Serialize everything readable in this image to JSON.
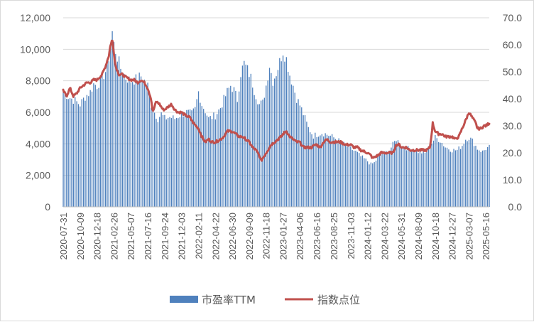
{
  "chart_data": {
    "type": "bar+line",
    "title": "",
    "xlabel": "",
    "ylabel": "",
    "y_left": {
      "min": 0,
      "max": 12000,
      "step": 2000,
      "tick_labels": [
        "0",
        "2,000",
        "4,000",
        "6,000",
        "8,000",
        "10,000",
        "12,000"
      ]
    },
    "y_right": {
      "min": 0,
      "max": 70,
      "step": 10,
      "tick_labels": [
        "0.0",
        "10.0",
        "20.0",
        "30.0",
        "40.0",
        "50.0",
        "60.0",
        "70.0"
      ]
    },
    "x_tick_labels": [
      "2020-07-31",
      "2020-10-09",
      "2020-12-18",
      "2021-02-26",
      "2021-05-07",
      "2021-07-16",
      "2021-09-24",
      "2021-12-03",
      "2022-02-11",
      "2022-04-22",
      "2022-06-30",
      "2022-09-09",
      "2022-11-18",
      "2023-01-27",
      "2023-04-06",
      "2023-06-16",
      "2023-08-25",
      "2023-11-03",
      "2024-01-12",
      "2024-03-22",
      "2024-05-31",
      "2024-08-09",
      "2024-10-18",
      "2024-12-27",
      "2025-03-07",
      "2025-05-16"
    ],
    "grid": true,
    "legend_position": "bottom",
    "series": [
      {
        "name": "市盈率TTM",
        "axis": "left",
        "type": "bar",
        "color": "#4f81bd",
        "keypoints": [
          [
            "2020-07-31",
            7300
          ],
          [
            "2020-08-21",
            7000
          ],
          [
            "2020-09-11",
            6800
          ],
          [
            "2020-10-09",
            6500
          ],
          [
            "2020-10-30",
            7000
          ],
          [
            "2020-11-20",
            7300
          ],
          [
            "2020-12-04",
            7800
          ],
          [
            "2020-12-18",
            7700
          ],
          [
            "2021-01-08",
            8200
          ],
          [
            "2021-01-22",
            8600
          ],
          [
            "2021-02-05",
            9500
          ],
          [
            "2021-02-19",
            11100
          ],
          [
            "2021-02-26",
            10300
          ],
          [
            "2021-03-12",
            9500
          ],
          [
            "2021-03-26",
            8800
          ],
          [
            "2021-04-16",
            8200
          ],
          [
            "2021-05-07",
            8000
          ],
          [
            "2021-05-28",
            8100
          ],
          [
            "2021-06-18",
            8300
          ],
          [
            "2021-07-02",
            8000
          ],
          [
            "2021-07-16",
            7700
          ],
          [
            "2021-07-30",
            6500
          ],
          [
            "2021-08-13",
            6000
          ],
          [
            "2021-08-27",
            5600
          ],
          [
            "2021-09-10",
            5900
          ],
          [
            "2021-09-24",
            5600
          ],
          [
            "2021-10-15",
            5700
          ],
          [
            "2021-11-05",
            5600
          ],
          [
            "2021-12-03",
            5900
          ],
          [
            "2021-12-24",
            6000
          ],
          [
            "2022-01-14",
            5900
          ],
          [
            "2022-01-28",
            6200
          ],
          [
            "2022-02-11",
            7300
          ],
          [
            "2022-02-25",
            6500
          ],
          [
            "2022-03-11",
            6100
          ],
          [
            "2022-03-25",
            5600
          ],
          [
            "2022-04-08",
            5700
          ],
          [
            "2022-04-22",
            5800
          ],
          [
            "2022-05-13",
            6300
          ],
          [
            "2022-05-27",
            6800
          ],
          [
            "2022-06-10",
            7300
          ],
          [
            "2022-06-24",
            7700
          ],
          [
            "2022-07-08",
            7400
          ],
          [
            "2022-07-22",
            6800
          ],
          [
            "2022-08-05",
            8500
          ],
          [
            "2022-08-19",
            9100
          ],
          [
            "2022-09-02",
            8700
          ],
          [
            "2022-09-16",
            8200
          ],
          [
            "2022-09-30",
            7400
          ],
          [
            "2022-10-21",
            6500
          ],
          [
            "2022-11-04",
            6600
          ],
          [
            "2022-11-18",
            7700
          ],
          [
            "2022-12-02",
            9000
          ],
          [
            "2022-12-16",
            8000
          ],
          [
            "2022-12-30",
            8500
          ],
          [
            "2023-01-13",
            9200
          ],
          [
            "2023-01-27",
            9900
          ],
          [
            "2023-02-10",
            9400
          ],
          [
            "2023-02-24",
            8400
          ],
          [
            "2023-03-10",
            7700
          ],
          [
            "2023-03-24",
            6900
          ],
          [
            "2023-04-06",
            6500
          ],
          [
            "2023-04-21",
            5900
          ],
          [
            "2023-05-12",
            5000
          ],
          [
            "2023-06-02",
            4500
          ],
          [
            "2023-06-16",
            4600
          ],
          [
            "2023-07-07",
            4700
          ],
          [
            "2023-07-28",
            4600
          ],
          [
            "2023-08-25",
            4400
          ],
          [
            "2023-09-15",
            4200
          ],
          [
            "2023-10-13",
            3900
          ],
          [
            "2023-11-03",
            3700
          ],
          [
            "2023-11-24",
            3500
          ],
          [
            "2023-12-15",
            3200
          ],
          [
            "2024-01-12",
            2900
          ],
          [
            "2024-01-26",
            2700
          ],
          [
            "2024-02-09",
            2800
          ],
          [
            "2024-03-01",
            3300
          ],
          [
            "2024-03-22",
            3400
          ],
          [
            "2024-04-12",
            3600
          ],
          [
            "2024-05-10",
            4300
          ],
          [
            "2024-05-31",
            3900
          ],
          [
            "2024-06-28",
            3700
          ],
          [
            "2024-07-26",
            3600
          ],
          [
            "2024-08-09",
            3500
          ],
          [
            "2024-09-06",
            3400
          ],
          [
            "2024-09-27",
            3900
          ],
          [
            "2024-10-18",
            4400
          ],
          [
            "2024-11-08",
            4200
          ],
          [
            "2024-11-29",
            3800
          ],
          [
            "2024-12-27",
            3600
          ],
          [
            "2025-01-17",
            3600
          ],
          [
            "2025-02-07",
            3900
          ],
          [
            "2025-02-21",
            4300
          ],
          [
            "2025-03-07",
            4400
          ],
          [
            "2025-03-21",
            4200
          ],
          [
            "2025-04-11",
            3700
          ],
          [
            "2025-05-02",
            3500
          ],
          [
            "2025-05-16",
            3700
          ],
          [
            "2025-05-30",
            3800
          ]
        ]
      },
      {
        "name": "指数点位",
        "axis": "right",
        "type": "line",
        "color": "#c0504d",
        "keypoints": [
          [
            "2020-07-31",
            43
          ],
          [
            "2020-08-14",
            41
          ],
          [
            "2020-08-28",
            44
          ],
          [
            "2020-09-11",
            41
          ],
          [
            "2020-09-25",
            42
          ],
          [
            "2020-10-09",
            44
          ],
          [
            "2020-10-23",
            45
          ],
          [
            "2020-11-06",
            46
          ],
          [
            "2020-11-20",
            46
          ],
          [
            "2020-12-04",
            47
          ],
          [
            "2020-12-18",
            47
          ],
          [
            "2021-01-08",
            49
          ],
          [
            "2021-01-22",
            52
          ],
          [
            "2021-02-05",
            56
          ],
          [
            "2021-02-12",
            60
          ],
          [
            "2021-02-19",
            62
          ],
          [
            "2021-02-26",
            57
          ],
          [
            "2021-03-05",
            52
          ],
          [
            "2021-03-19",
            49
          ],
          [
            "2021-04-02",
            49
          ],
          [
            "2021-04-16",
            48
          ],
          [
            "2021-05-07",
            47
          ],
          [
            "2021-05-21",
            47
          ],
          [
            "2021-06-04",
            46
          ],
          [
            "2021-06-18",
            47
          ],
          [
            "2021-07-02",
            46
          ],
          [
            "2021-07-16",
            44
          ],
          [
            "2021-07-30",
            40
          ],
          [
            "2021-08-06",
            35
          ],
          [
            "2021-08-20",
            39
          ],
          [
            "2021-09-03",
            38
          ],
          [
            "2021-09-17",
            36
          ],
          [
            "2021-09-24",
            36
          ],
          [
            "2021-10-08",
            37
          ],
          [
            "2021-10-22",
            38
          ],
          [
            "2021-11-05",
            36
          ],
          [
            "2021-11-19",
            35
          ],
          [
            "2021-12-03",
            35
          ],
          [
            "2021-12-17",
            34
          ],
          [
            "2022-01-07",
            33
          ],
          [
            "2022-01-21",
            31
          ],
          [
            "2022-02-11",
            29
          ],
          [
            "2022-02-25",
            26
          ],
          [
            "2022-03-11",
            24
          ],
          [
            "2022-03-25",
            25
          ],
          [
            "2022-04-08",
            24
          ],
          [
            "2022-04-22",
            24
          ],
          [
            "2022-05-13",
            25
          ],
          [
            "2022-05-27",
            26
          ],
          [
            "2022-06-10",
            28
          ],
          [
            "2022-06-30",
            28
          ],
          [
            "2022-07-15",
            27
          ],
          [
            "2022-07-29",
            26
          ],
          [
            "2022-08-12",
            26
          ],
          [
            "2022-08-26",
            25
          ],
          [
            "2022-09-09",
            24
          ],
          [
            "2022-09-23",
            22
          ],
          [
            "2022-10-07",
            21
          ],
          [
            "2022-10-21",
            19
          ],
          [
            "2022-10-28",
            17
          ],
          [
            "2022-11-11",
            19
          ],
          [
            "2022-11-25",
            21
          ],
          [
            "2022-12-09",
            23
          ],
          [
            "2022-12-23",
            24
          ],
          [
            "2023-01-06",
            25
          ],
          [
            "2023-01-20",
            26
          ],
          [
            "2023-01-27",
            27
          ],
          [
            "2023-02-10",
            28
          ],
          [
            "2023-02-24",
            26
          ],
          [
            "2023-03-10",
            25
          ],
          [
            "2023-03-24",
            24
          ],
          [
            "2023-04-06",
            24
          ],
          [
            "2023-04-21",
            22
          ],
          [
            "2023-05-12",
            22
          ],
          [
            "2023-05-26",
            22
          ],
          [
            "2023-06-09",
            23
          ],
          [
            "2023-06-16",
            23
          ],
          [
            "2023-06-30",
            22
          ],
          [
            "2023-07-14",
            24
          ],
          [
            "2023-07-28",
            25
          ],
          [
            "2023-08-11",
            24
          ],
          [
            "2023-08-25",
            24
          ],
          [
            "2023-09-08",
            24
          ],
          [
            "2023-09-22",
            24
          ],
          [
            "2023-10-13",
            23
          ],
          [
            "2023-10-27",
            23
          ],
          [
            "2023-11-03",
            23
          ],
          [
            "2023-11-17",
            22
          ],
          [
            "2023-12-01",
            22
          ],
          [
            "2023-12-15",
            21
          ],
          [
            "2024-01-12",
            20
          ],
          [
            "2024-01-26",
            19
          ],
          [
            "2024-02-02",
            18
          ],
          [
            "2024-02-23",
            19
          ],
          [
            "2024-03-08",
            20
          ],
          [
            "2024-03-22",
            20
          ],
          [
            "2024-04-12",
            20
          ],
          [
            "2024-04-26",
            20
          ],
          [
            "2024-05-10",
            23
          ],
          [
            "2024-05-24",
            23
          ],
          [
            "2024-05-31",
            22
          ],
          [
            "2024-06-21",
            22
          ],
          [
            "2024-07-05",
            21
          ],
          [
            "2024-07-26",
            21
          ],
          [
            "2024-08-09",
            21
          ],
          [
            "2024-08-23",
            21
          ],
          [
            "2024-09-13",
            21
          ],
          [
            "2024-09-27",
            22
          ],
          [
            "2024-10-08",
            31
          ],
          [
            "2024-10-18",
            28
          ],
          [
            "2024-11-01",
            27
          ],
          [
            "2024-11-15",
            27
          ],
          [
            "2024-11-29",
            26
          ],
          [
            "2024-12-13",
            26
          ],
          [
            "2024-12-27",
            26
          ],
          [
            "2025-01-10",
            25
          ],
          [
            "2025-01-24",
            26
          ],
          [
            "2025-02-07",
            29
          ],
          [
            "2025-02-21",
            32
          ],
          [
            "2025-03-07",
            35
          ],
          [
            "2025-03-21",
            33
          ],
          [
            "2025-04-04",
            31
          ],
          [
            "2025-04-11",
            29
          ],
          [
            "2025-04-25",
            29
          ],
          [
            "2025-05-09",
            30
          ],
          [
            "2025-05-16",
            30
          ],
          [
            "2025-05-30",
            31
          ]
        ]
      }
    ]
  }
}
